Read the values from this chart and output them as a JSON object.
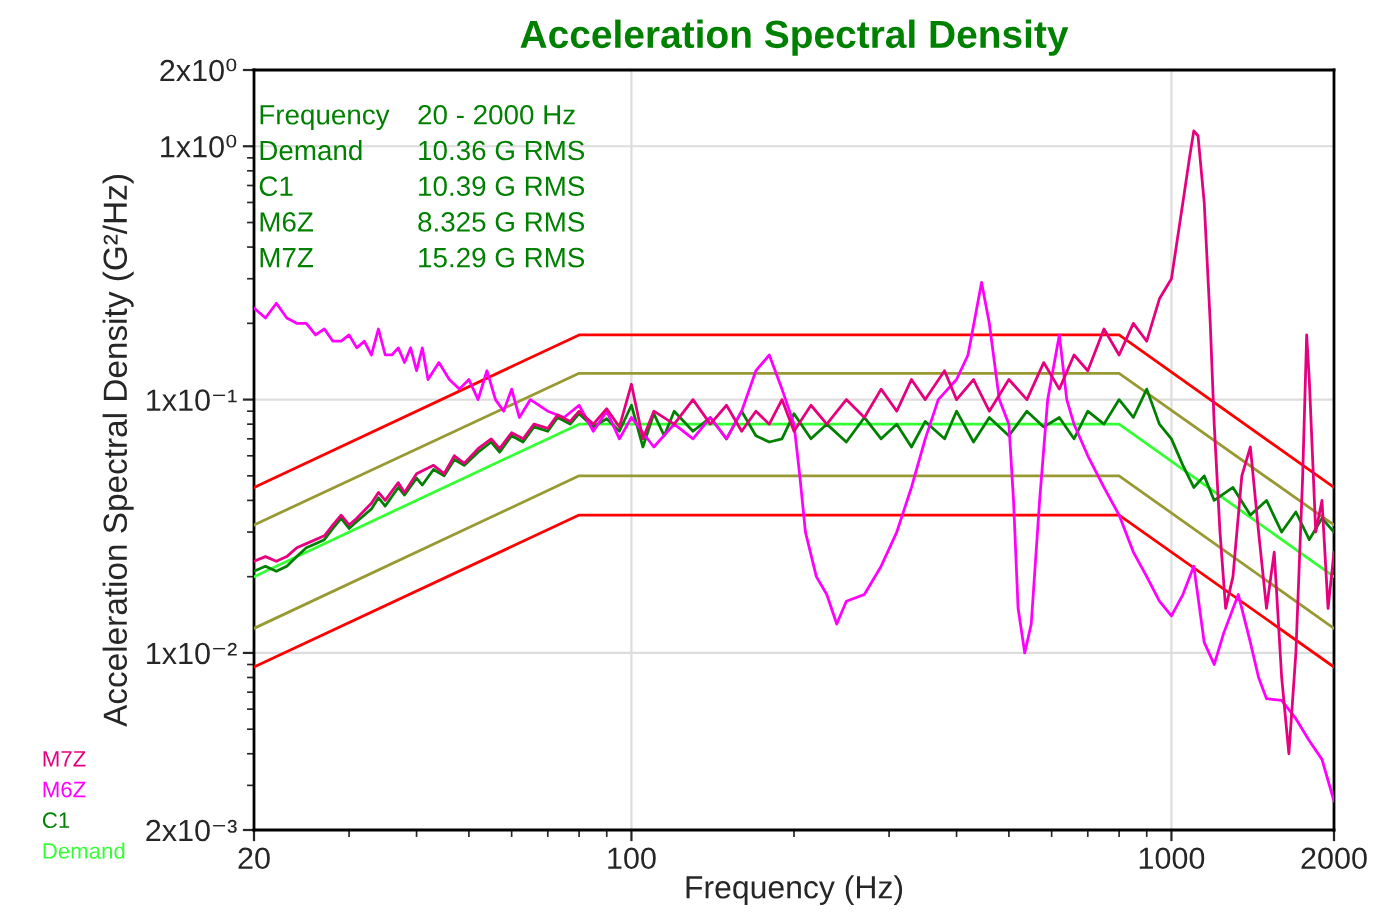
{
  "chart_data": {
    "type": "line",
    "title": "Acceleration Spectral Density",
    "xlabel": "Frequency (Hz)",
    "ylabel": "Acceleration Spectral Density (G²/Hz)",
    "log": "xy",
    "grid": true,
    "legend": "bottom left",
    "xlim": [
      20,
      2000
    ],
    "xticks": [
      20,
      100,
      1000,
      2000
    ],
    "ylim": [
      0.002,
      2
    ],
    "yticks": [
      {
        "value": 0.002,
        "label": "2x10⁻³"
      },
      {
        "value": 0.01,
        "label": "1x10⁻²"
      },
      {
        "value": 0.1,
        "label": "1x10⁻¹"
      },
      {
        "value": 1,
        "label": "1x10⁰"
      },
      {
        "value": 2,
        "label": "2x10⁰"
      }
    ],
    "annotations": [
      "Frequency",
      "20 - 2000 Hz",
      "Demand",
      "10.36 G RMS",
      "C1",
      "10.39 G RMS",
      "M6Z",
      "8.325 G RMS",
      "M7Z",
      "15.29 G RMS"
    ],
    "series": [
      {
        "name": "M7Z",
        "color": "#e6007e",
        "x": [
          20,
          21,
          22,
          23,
          24,
          25,
          27,
          28,
          29,
          30,
          31,
          33,
          34,
          35,
          37,
          38,
          40,
          43,
          45,
          47,
          49,
          52,
          55,
          57,
          60,
          63,
          66,
          70,
          73,
          77,
          80,
          85,
          90,
          95,
          100,
          105,
          110,
          120,
          130,
          140,
          150,
          160,
          170,
          180,
          190,
          200,
          215,
          230,
          250,
          270,
          290,
          310,
          330,
          350,
          380,
          400,
          430,
          460,
          500,
          540,
          580,
          620,
          660,
          700,
          750,
          800,
          850,
          900,
          950,
          1000,
          1050,
          1080,
          1100,
          1120,
          1150,
          1180,
          1200,
          1230,
          1260,
          1300,
          1350,
          1400,
          1450,
          1500,
          1550,
          1600,
          1650,
          1700,
          1750,
          1780,
          1800,
          1850,
          1900,
          1950,
          2000
        ],
        "values": [
          0.023,
          0.024,
          0.023,
          0.024,
          0.026,
          0.027,
          0.029,
          0.032,
          0.035,
          0.032,
          0.034,
          0.039,
          0.043,
          0.04,
          0.047,
          0.043,
          0.051,
          0.055,
          0.051,
          0.06,
          0.056,
          0.064,
          0.07,
          0.064,
          0.074,
          0.07,
          0.08,
          0.077,
          0.087,
          0.082,
          0.09,
          0.08,
          0.092,
          0.078,
          0.115,
          0.07,
          0.09,
          0.08,
          0.1,
          0.08,
          0.095,
          0.075,
          0.09,
          0.08,
          0.1,
          0.075,
          0.095,
          0.08,
          0.1,
          0.085,
          0.11,
          0.09,
          0.12,
          0.1,
          0.13,
          0.1,
          0.12,
          0.09,
          0.12,
          0.1,
          0.14,
          0.11,
          0.15,
          0.13,
          0.19,
          0.15,
          0.2,
          0.17,
          0.25,
          0.3,
          0.6,
          0.9,
          1.15,
          1.1,
          0.6,
          0.2,
          0.08,
          0.03,
          0.015,
          0.02,
          0.05,
          0.065,
          0.03,
          0.015,
          0.025,
          0.008,
          0.004,
          0.01,
          0.05,
          0.18,
          0.12,
          0.03,
          0.04,
          0.015,
          0.025
        ]
      },
      {
        "name": "M6Z",
        "color": "#ff00ff",
        "x": [
          20,
          21,
          22,
          23,
          24,
          25,
          26,
          27,
          28,
          29,
          30,
          31,
          32,
          33,
          34,
          35,
          36,
          37,
          38,
          39,
          40,
          41,
          42,
          44,
          46,
          48,
          50,
          52,
          54,
          56,
          58,
          60,
          62,
          65,
          70,
          75,
          80,
          85,
          90,
          95,
          100,
          110,
          120,
          130,
          140,
          150,
          160,
          170,
          180,
          190,
          200,
          205,
          210,
          220,
          230,
          240,
          250,
          270,
          290,
          310,
          330,
          350,
          370,
          400,
          420,
          445,
          460,
          480,
          500,
          510,
          520,
          535,
          550,
          570,
          590,
          620,
          640,
          660,
          700,
          750,
          800,
          850,
          900,
          950,
          1000,
          1050,
          1100,
          1150,
          1200,
          1250,
          1330,
          1400,
          1450,
          1500,
          1600,
          1700,
          1800,
          1900,
          2000
        ],
        "values": [
          0.23,
          0.21,
          0.24,
          0.21,
          0.2,
          0.2,
          0.18,
          0.19,
          0.17,
          0.17,
          0.18,
          0.16,
          0.17,
          0.15,
          0.19,
          0.15,
          0.15,
          0.16,
          0.14,
          0.16,
          0.13,
          0.16,
          0.12,
          0.14,
          0.12,
          0.11,
          0.12,
          0.1,
          0.13,
          0.1,
          0.09,
          0.11,
          0.085,
          0.1,
          0.09,
          0.085,
          0.095,
          0.075,
          0.09,
          0.07,
          0.085,
          0.065,
          0.08,
          0.07,
          0.085,
          0.07,
          0.09,
          0.13,
          0.15,
          0.11,
          0.08,
          0.05,
          0.03,
          0.02,
          0.017,
          0.013,
          0.016,
          0.017,
          0.022,
          0.03,
          0.045,
          0.07,
          0.1,
          0.12,
          0.15,
          0.29,
          0.2,
          0.1,
          0.08,
          0.04,
          0.015,
          0.01,
          0.013,
          0.04,
          0.1,
          0.18,
          0.1,
          0.08,
          0.06,
          0.045,
          0.035,
          0.025,
          0.02,
          0.016,
          0.014,
          0.017,
          0.022,
          0.011,
          0.009,
          0.012,
          0.017,
          0.011,
          0.008,
          0.0066,
          0.0065,
          0.0055,
          0.0045,
          0.0038,
          0.0026
        ]
      },
      {
        "name": "C1",
        "color": "#008000",
        "x": [
          20,
          21,
          22,
          23,
          24,
          25,
          26,
          27,
          28,
          29,
          30,
          31,
          33,
          34,
          35,
          37,
          38,
          40,
          41,
          43,
          45,
          47,
          49,
          52,
          55,
          57,
          60,
          63,
          66,
          70,
          73,
          77,
          80,
          85,
          90,
          95,
          100,
          105,
          110,
          115,
          120,
          130,
          140,
          150,
          160,
          170,
          180,
          190,
          200,
          215,
          230,
          250,
          270,
          290,
          310,
          330,
          350,
          380,
          400,
          430,
          460,
          500,
          540,
          580,
          620,
          660,
          700,
          750,
          800,
          850,
          900,
          950,
          1000,
          1050,
          1100,
          1150,
          1200,
          1300,
          1400,
          1500,
          1600,
          1700,
          1800,
          1900,
          2000
        ],
        "values": [
          0.021,
          0.022,
          0.021,
          0.022,
          0.024,
          0.026,
          0.027,
          0.028,
          0.031,
          0.034,
          0.031,
          0.033,
          0.037,
          0.041,
          0.038,
          0.045,
          0.042,
          0.049,
          0.046,
          0.053,
          0.05,
          0.058,
          0.055,
          0.062,
          0.068,
          0.062,
          0.072,
          0.068,
          0.078,
          0.075,
          0.085,
          0.08,
          0.088,
          0.078,
          0.084,
          0.075,
          0.095,
          0.065,
          0.088,
          0.072,
          0.09,
          0.075,
          0.085,
          0.07,
          0.09,
          0.072,
          0.068,
          0.07,
          0.088,
          0.07,
          0.08,
          0.068,
          0.085,
          0.07,
          0.08,
          0.065,
          0.082,
          0.07,
          0.09,
          0.068,
          0.085,
          0.072,
          0.09,
          0.078,
          0.085,
          0.07,
          0.09,
          0.08,
          0.1,
          0.085,
          0.11,
          0.08,
          0.07,
          0.055,
          0.045,
          0.05,
          0.04,
          0.045,
          0.035,
          0.04,
          0.03,
          0.036,
          0.028,
          0.034,
          0.03
        ]
      },
      {
        "name": "Demand",
        "color": "#33ff33",
        "x": [
          20,
          80,
          800,
          2000
        ],
        "values": [
          0.02,
          0.08,
          0.08,
          0.02
        ]
      },
      {
        "color": "#ff0000",
        "x": [
          20,
          80,
          800,
          2000
        ],
        "values": [
          0.045,
          0.18,
          0.18,
          0.045
        ]
      },
      {
        "color": "#999933",
        "x": [
          20,
          80,
          800,
          2000
        ],
        "values": [
          0.032,
          0.127,
          0.127,
          0.032
        ]
      },
      {
        "color": "#999933",
        "x": [
          20,
          80,
          800,
          2000
        ],
        "values": [
          0.0125,
          0.05,
          0.05,
          0.0125
        ]
      },
      {
        "color": "#ff0000",
        "x": [
          20,
          80,
          800,
          2000
        ],
        "values": [
          0.0088,
          0.035,
          0.035,
          0.0088
        ]
      }
    ]
  }
}
